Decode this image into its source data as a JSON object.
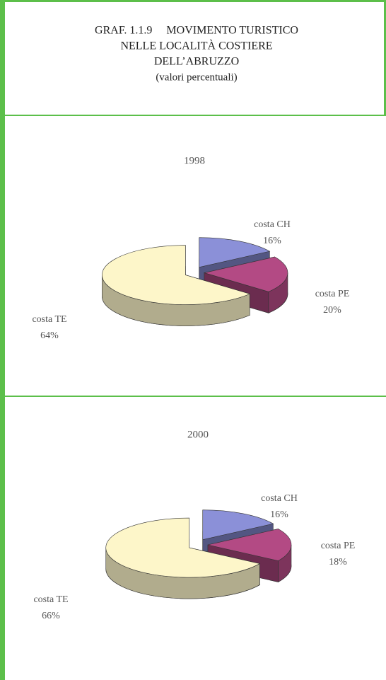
{
  "header": {
    "title": [
      "GRAF. 1.1.9     MOVIMENTO TURISTICO",
      "NELLE LOCALITÀ COSTIERE",
      "DELL’ABRUZZO"
    ],
    "subtitle": "(valori percentuali)"
  },
  "chart_data": [
    {
      "type": "pie",
      "title": "1998",
      "categories": [
        "costa CH",
        "costa PE",
        "costa TE"
      ],
      "values": [
        16,
        20,
        64
      ],
      "value_labels": [
        "16%",
        "20%",
        "64%"
      ],
      "colors": [
        "#8b90d8",
        "#b34a84",
        "#fdf6c9"
      ]
    },
    {
      "type": "pie",
      "title": "2000",
      "categories": [
        "costa CH",
        "costa PE",
        "costa TE"
      ],
      "values": [
        16,
        18,
        66
      ],
      "value_labels": [
        "16%",
        "18%",
        "66%"
      ],
      "colors": [
        "#8b90d8",
        "#b34a84",
        "#fdf6c9"
      ]
    }
  ]
}
